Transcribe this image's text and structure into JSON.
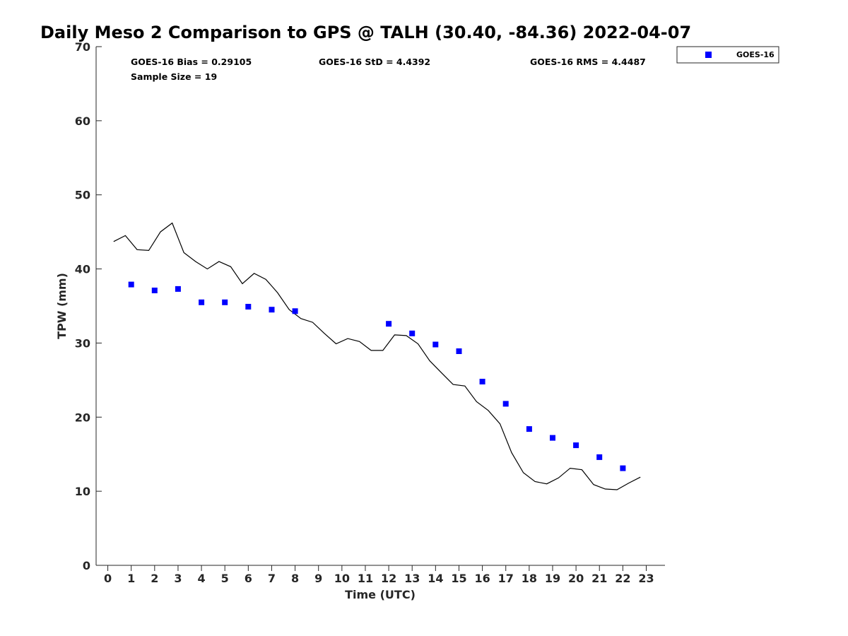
{
  "chart_data": {
    "type": "scatter",
    "title": "Daily Meso 2 Comparison to GPS @ TALH (30.40, -84.36) 2022-04-07",
    "xlabel": "Time (UTC)",
    "ylabel": "TPW (mm)",
    "xlim": [
      -0.5,
      23.8
    ],
    "ylim": [
      0,
      70
    ],
    "x_ticks": [
      "0",
      "1",
      "2",
      "3",
      "4",
      "5",
      "6",
      "7",
      "8",
      "9",
      "10",
      "11",
      "12",
      "13",
      "14",
      "15",
      "16",
      "17",
      "18",
      "19",
      "20",
      "21",
      "22",
      "23"
    ],
    "y_ticks": [
      "0",
      "10",
      "20",
      "30",
      "40",
      "50",
      "60",
      "70"
    ],
    "grid": false,
    "legend_position": "top-right",
    "stats": {
      "bias": "GOES-16 Bias = 0.29105",
      "std": "GOES-16 StD = 4.4392",
      "rms": "GOES-16 RMS = 4.4487",
      "sample": "Sample Size = 19"
    },
    "series": [
      {
        "name": "GOES-16",
        "kind": "scatter",
        "marker": "square",
        "color": "#0000ff",
        "x": [
          1,
          2,
          3,
          4,
          5,
          6,
          7,
          8,
          12,
          13,
          14,
          15,
          16,
          17,
          18,
          19,
          20,
          21,
          22
        ],
        "y": [
          37.9,
          37.1,
          37.3,
          35.5,
          35.5,
          34.9,
          34.5,
          34.3,
          32.6,
          31.3,
          29.8,
          28.9,
          24.8,
          21.8,
          18.4,
          17.2,
          16.2,
          14.6,
          13.1
        ]
      },
      {
        "kind": "line",
        "color": "#000000",
        "x": [
          0.25,
          0.75,
          1.25,
          1.75,
          2.25,
          2.75,
          3.25,
          3.75,
          4.25,
          4.75,
          5.25,
          5.75,
          6.25,
          6.75,
          7.25,
          7.75,
          8.25,
          8.75,
          9.25,
          9.75,
          10.25,
          10.75,
          11.25,
          11.75,
          12.25,
          12.75,
          13.25,
          13.75,
          14.25,
          14.75,
          15.25,
          15.75,
          16.25,
          16.75,
          17.25,
          17.75,
          18.25,
          18.75,
          19.25,
          19.75,
          20.25,
          20.75,
          21.25,
          21.75,
          22.25,
          22.75
        ],
        "y": [
          43.7,
          44.5,
          42.6,
          42.5,
          45.0,
          46.2,
          42.2,
          41.0,
          40.0,
          41.0,
          40.3,
          38.0,
          39.4,
          38.6,
          36.8,
          34.5,
          33.3,
          32.8,
          31.3,
          29.9,
          30.6,
          30.2,
          29.0,
          29.0,
          31.1,
          31.0,
          29.9,
          27.6,
          26.0,
          24.4,
          24.2,
          22.1,
          20.9,
          19.1,
          15.2,
          12.5,
          11.3,
          11.0,
          11.8,
          13.1,
          12.9,
          10.9,
          10.3,
          10.2,
          11.1,
          11.9
        ]
      }
    ]
  }
}
